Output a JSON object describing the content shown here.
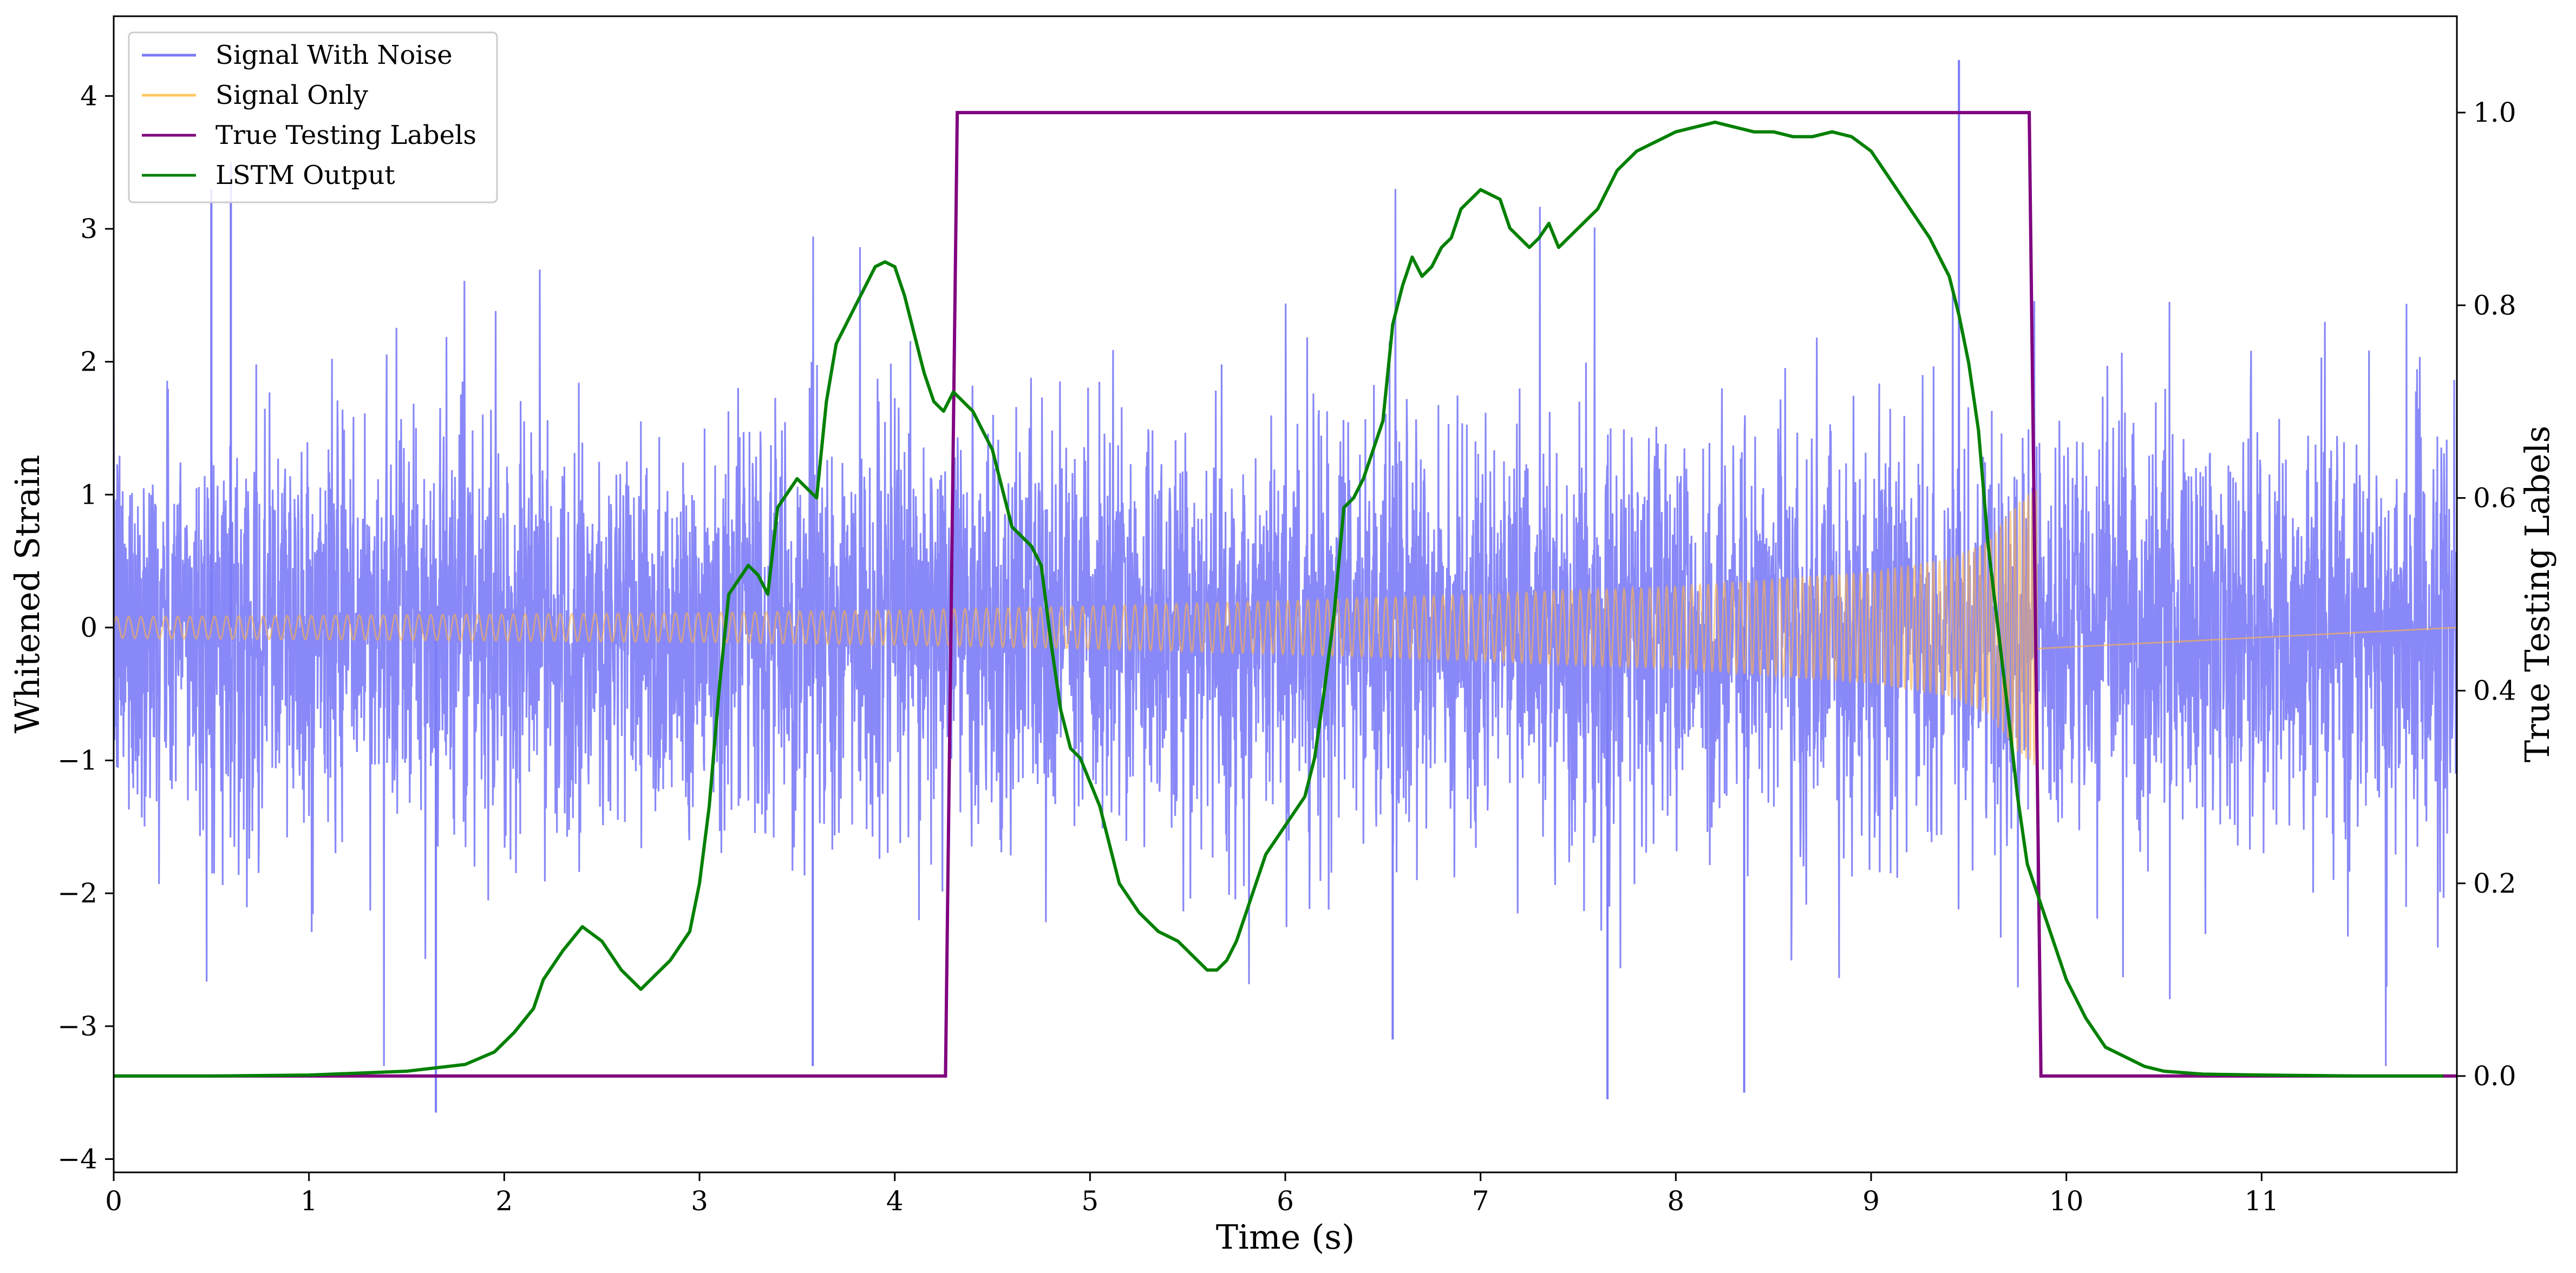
{
  "chart_data": {
    "type": "line",
    "title": "",
    "xlabel": "Time (s)",
    "ylabel": "Whitened Strain",
    "y2label": "True Testing Labels",
    "xlim": [
      0,
      12
    ],
    "ylim": [
      -4.1,
      4.6
    ],
    "y2lim": [
      -0.1,
      1.1
    ],
    "xticks": [
      "0",
      "1",
      "2",
      "3",
      "4",
      "5",
      "6",
      "7",
      "8",
      "9",
      "10",
      "11"
    ],
    "yticks": [
      "−4",
      "−3",
      "−2",
      "−1",
      "0",
      "1",
      "2",
      "3",
      "4"
    ],
    "y2ticks": [
      "0.0",
      "0.2",
      "0.4",
      "0.6",
      "0.8",
      "1.0"
    ],
    "legend": {
      "position": "upper left",
      "entries": [
        "Signal With Noise",
        "Signal Only",
        "True Testing Labels",
        "LSTM Output"
      ]
    },
    "series": [
      {
        "name": "Signal With Noise",
        "axis": "left",
        "color": "#7b7bf7",
        "description": "Gaussian noise, std ~0.75, with spikes up to about ±3.5 (peak 4.27 near t=9.45, dip -3.65 near t=1.65)",
        "noise_std": 0.75,
        "spikes": [
          [
            1.65,
            -3.65
          ],
          [
            3.58,
            -3.3
          ],
          [
            6.55,
            -3.1
          ],
          [
            7.65,
            -3.55
          ],
          [
            8.35,
            -3.5
          ],
          [
            9.45,
            4.27
          ],
          [
            0.5,
            3.3
          ],
          [
            0.6,
            3.5
          ]
        ]
      },
      {
        "name": "Signal Only",
        "axis": "left",
        "color": "#ffb347",
        "description": "Chirp oscillation from t=0 to ~9.85 s with growing amplitude, then 0",
        "envelope": {
          "t": [
            0,
            1,
            2,
            3,
            4,
            5,
            6,
            7,
            8,
            9,
            9.4,
            9.6,
            9.75,
            9.85
          ],
          "amplitude": [
            0.08,
            0.09,
            0.1,
            0.11,
            0.13,
            0.16,
            0.2,
            0.25,
            0.31,
            0.42,
            0.52,
            0.65,
            0.95,
            1.05
          ]
        },
        "end_time": 9.85
      },
      {
        "name": "True Testing Labels",
        "axis": "right",
        "color": "#800080",
        "x": [
          0,
          4.26,
          4.32,
          9.81,
          9.87,
          12.0
        ],
        "y": [
          0,
          0,
          1,
          1,
          0,
          0
        ]
      },
      {
        "name": "LSTM Output",
        "axis": "right",
        "color": "#008000",
        "x": [
          0,
          0.5,
          1.0,
          1.5,
          1.8,
          1.95,
          2.05,
          2.15,
          2.2,
          2.3,
          2.4,
          2.5,
          2.6,
          2.7,
          2.75,
          2.85,
          2.95,
          3.0,
          3.05,
          3.1,
          3.15,
          3.25,
          3.3,
          3.35,
          3.4,
          3.5,
          3.6,
          3.65,
          3.7,
          3.8,
          3.85,
          3.9,
          3.95,
          4.0,
          4.05,
          4.15,
          4.2,
          4.25,
          4.3,
          4.35,
          4.4,
          4.5,
          4.6,
          4.7,
          4.75,
          4.8,
          4.85,
          4.9,
          4.95,
          5.05,
          5.1,
          5.15,
          5.25,
          5.3,
          5.35,
          5.45,
          5.5,
          5.55,
          5.6,
          5.65,
          5.7,
          5.75,
          5.8,
          5.9,
          6.0,
          6.1,
          6.15,
          6.2,
          6.25,
          6.3,
          6.35,
          6.4,
          6.5,
          6.55,
          6.6,
          6.65,
          6.7,
          6.75,
          6.8,
          6.85,
          6.9,
          7.0,
          7.1,
          7.15,
          7.2,
          7.25,
          7.3,
          7.35,
          7.4,
          7.5,
          7.6,
          7.7,
          7.8,
          7.9,
          8.0,
          8.1,
          8.2,
          8.3,
          8.4,
          8.5,
          8.6,
          8.7,
          8.8,
          8.9,
          9.0,
          9.1,
          9.2,
          9.3,
          9.4,
          9.45,
          9.5,
          9.55,
          9.6,
          9.7,
          9.75,
          9.8,
          9.9,
          10.0,
          10.1,
          10.2,
          10.3,
          10.4,
          10.5,
          10.7,
          11.0,
          11.5,
          11.93
        ],
        "y": [
          0.0,
          0.0,
          0.001,
          0.005,
          0.012,
          0.025,
          0.045,
          0.07,
          0.1,
          0.13,
          0.155,
          0.14,
          0.11,
          0.09,
          0.1,
          0.12,
          0.15,
          0.2,
          0.28,
          0.4,
          0.5,
          0.53,
          0.52,
          0.5,
          0.59,
          0.62,
          0.6,
          0.7,
          0.76,
          0.8,
          0.82,
          0.84,
          0.845,
          0.84,
          0.81,
          0.73,
          0.7,
          0.69,
          0.71,
          0.7,
          0.69,
          0.65,
          0.57,
          0.55,
          0.53,
          0.45,
          0.38,
          0.34,
          0.33,
          0.28,
          0.24,
          0.2,
          0.17,
          0.16,
          0.15,
          0.14,
          0.13,
          0.12,
          0.11,
          0.11,
          0.12,
          0.14,
          0.17,
          0.23,
          0.26,
          0.29,
          0.33,
          0.4,
          0.48,
          0.59,
          0.6,
          0.62,
          0.68,
          0.78,
          0.82,
          0.85,
          0.83,
          0.84,
          0.86,
          0.87,
          0.9,
          0.92,
          0.91,
          0.88,
          0.87,
          0.86,
          0.87,
          0.885,
          0.86,
          0.88,
          0.9,
          0.94,
          0.96,
          0.97,
          0.98,
          0.985,
          0.99,
          0.985,
          0.98,
          0.98,
          0.975,
          0.975,
          0.98,
          0.975,
          0.96,
          0.93,
          0.9,
          0.87,
          0.83,
          0.79,
          0.74,
          0.67,
          0.55,
          0.38,
          0.29,
          0.22,
          0.16,
          0.1,
          0.06,
          0.03,
          0.02,
          0.01,
          0.005,
          0.002,
          0.001,
          0.0,
          0.0
        ]
      }
    ]
  }
}
